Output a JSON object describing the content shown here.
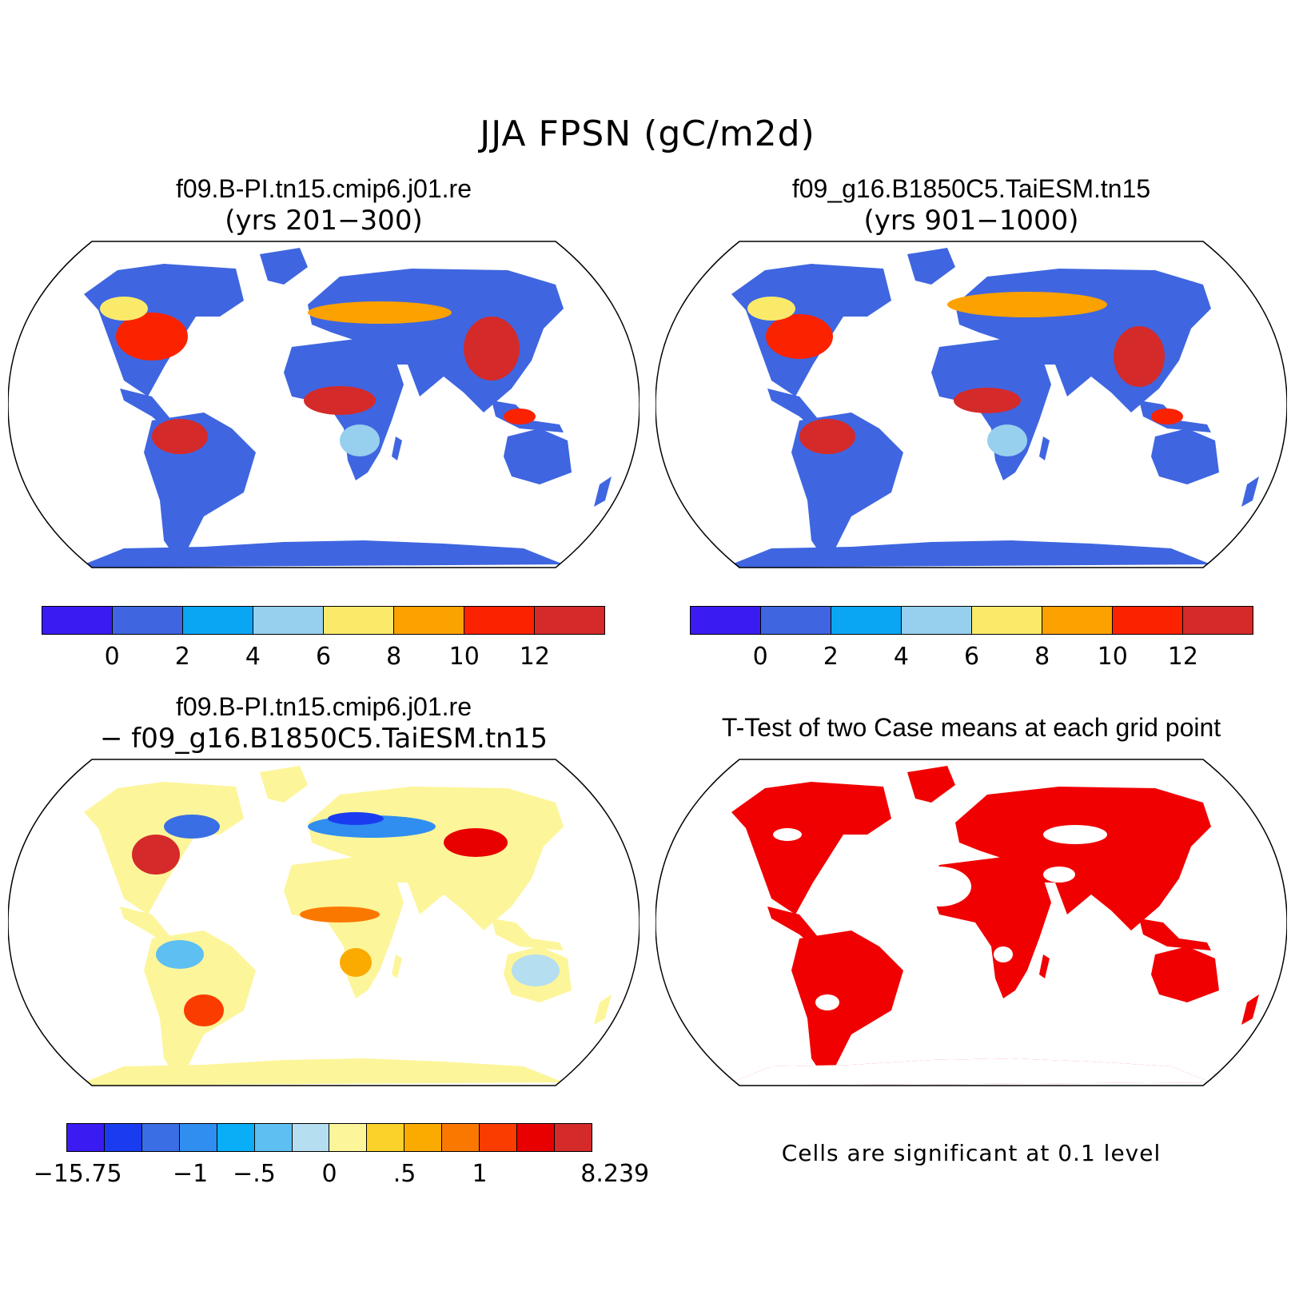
{
  "figure": {
    "title": "JJA FPSN (gC/m2d)"
  },
  "panels": [
    {
      "title": "f09.B-PI.tn15.cmip6.j01.re",
      "subtitle": "(yrs 201−300)"
    },
    {
      "title": "f09_g16.B1850C5.TaiESM.tn15",
      "subtitle": "(yrs 901−1000)"
    },
    {
      "title": "f09.B-PI.tn15.cmip6.j01.re",
      "subtitle": "− f09_g16.B1850C5.TaiESM.tn15"
    },
    {
      "title": "T-Test of two Case means at each grid point",
      "note": "Cells are significant at 0.1 level"
    }
  ],
  "colorbars": {
    "mean": {
      "colors": [
        "#3a1cf2",
        "#3f66e0",
        "#0aa6f4",
        "#97cfee",
        "#fbea6a",
        "#fba100",
        "#fb2200",
        "#d42a2a"
      ],
      "labels": [
        "0",
        "2",
        "4",
        "6",
        "8",
        "10",
        "12"
      ]
    },
    "diff": {
      "colors": [
        "#3a1cf2",
        "#1a3cf0",
        "#3a6ee4",
        "#2f8ef0",
        "#0aaef7",
        "#5dbff2",
        "#b5def0",
        "#fdf59a",
        "#fbd22a",
        "#fbaa00",
        "#fb7800",
        "#fb3c00",
        "#e80000",
        "#d42a2a"
      ],
      "labels": [
        "−15.75",
        "−1",
        "−.5",
        "0",
        ".5",
        "1",
        "8.239"
      ]
    }
  },
  "map_layers": {
    "ocean_color": "#ffffff",
    "significance_color": "#f00000"
  }
}
